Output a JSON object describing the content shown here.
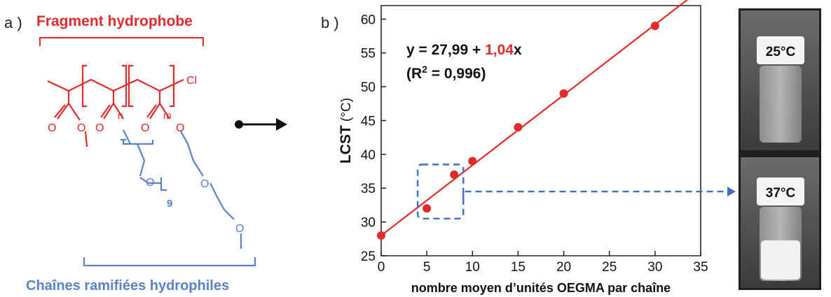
{
  "panel_a": {
    "letter": "a )",
    "hydrophobic_label": "Fragment hydrophobe",
    "hydrophilic_label": "Chaînes ramifiées hydrophiles",
    "atoms": {
      "cl": "Cl",
      "n": "n",
      "m": "m",
      "nine": "9",
      "o": "O"
    },
    "colors": {
      "red": "#e02b2b",
      "blue": "#5a82c8"
    }
  },
  "panel_b": {
    "letter": "b )",
    "equation_prefix": "y = 27,99 + ",
    "equation_slope": "1,04",
    "equation_suffix": "x",
    "r2_prefix": "(R",
    "r2_sup": "2",
    "r2_suffix": " = 0,996)"
  },
  "panel_c": {
    "vial_top_label": "25°C",
    "vial_bottom_label": "37°C"
  },
  "chart_data": {
    "type": "scatter",
    "title": "",
    "xlabel": "nombre moyen d’unités OEGMA par chaîne",
    "ylabel_bold": "LCST",
    "ylabel_unit": " (°C)",
    "xlim": [
      0,
      35
    ],
    "ylim": [
      25,
      62
    ],
    "xticks": [
      0,
      5,
      10,
      15,
      20,
      25,
      30,
      35
    ],
    "yticks": [
      25,
      30,
      35,
      40,
      45,
      50,
      55,
      60
    ],
    "points": [
      {
        "x": 0,
        "y": 28
      },
      {
        "x": 5,
        "y": 32
      },
      {
        "x": 8,
        "y": 37
      },
      {
        "x": 10,
        "y": 39
      },
      {
        "x": 15,
        "y": 44
      },
      {
        "x": 20,
        "y": 49
      },
      {
        "x": 30,
        "y": 59
      }
    ],
    "fit": {
      "intercept": 27.99,
      "slope": 1.04,
      "x_range": [
        0,
        33.6
      ]
    },
    "highlight_box": {
      "x": [
        4,
        9
      ],
      "y": [
        30.5,
        38.5
      ]
    },
    "grid": false,
    "point_color": "#e02b2b",
    "line_color": "#e02b2b",
    "highlight_color": "#3f6fc4"
  }
}
